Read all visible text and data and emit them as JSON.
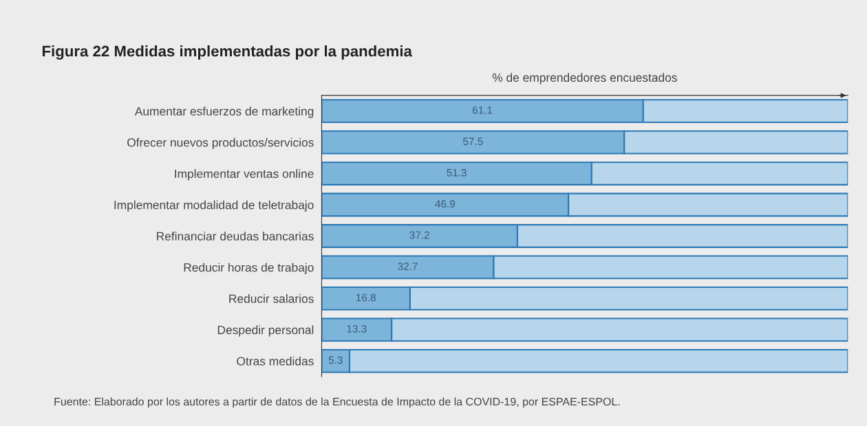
{
  "chart_data": {
    "type": "bar",
    "orientation": "horizontal",
    "stacked": true,
    "title": "Figura 22 Medidas implementadas por la pandemia",
    "xlabel": "% de emprendedores encuestados",
    "categories": [
      "Aumentar esfuerzos de marketing",
      "Ofrecer nuevos productos/servicios",
      "Implementar ventas online",
      "Implementar modalidad de teletrabajo",
      "Refinanciar deudas bancarias",
      "Reducir horas de trabajo",
      "Reducir salarios",
      "Despedir personal",
      "Otras medidas"
    ],
    "series": [
      {
        "color": "#7db4da",
        "values": [
          61.1,
          57.5,
          51.3,
          46.9,
          37.2,
          32.7,
          16.8,
          13.3,
          5.3
        ],
        "value_labels": [
          "61.1",
          "57.5",
          "51.3",
          "46.9",
          "37.2",
          "32.7",
          "16.8",
          "13.3",
          "5.3"
        ]
      },
      {
        "color": "#b7d5eb",
        "values": [
          38.9,
          42.5,
          48.7,
          53.1,
          62.8,
          67.3,
          83.2,
          86.7,
          94.7
        ]
      }
    ],
    "xlim": [
      0,
      100
    ],
    "tick_labels": "y",
    "grid": false,
    "legend": false,
    "annotations": [
      "Fuente: Elaborado por los autores a partir de datos de la Encuesta de Impacto de la COVID-19, por ESPAE-ESPOL."
    ]
  }
}
